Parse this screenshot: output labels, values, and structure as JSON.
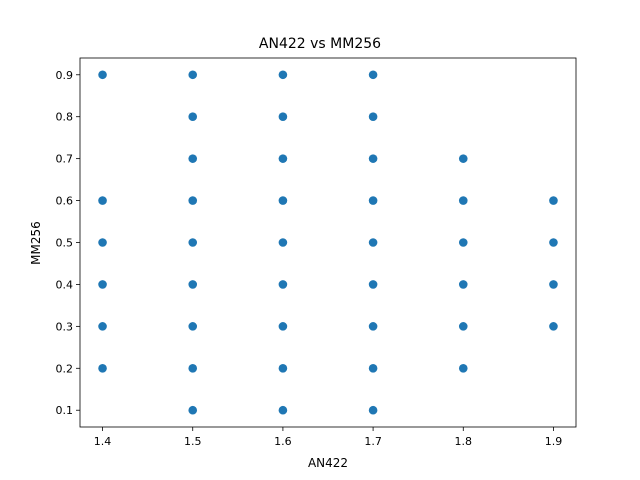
{
  "chart_data": {
    "type": "scatter",
    "title": "AN422 vs MM256",
    "xlabel": "AN422",
    "ylabel": "MM256",
    "xlim": [
      1.375,
      1.925
    ],
    "ylim": [
      0.06,
      0.94
    ],
    "xticks": [
      "1.4",
      "1.5",
      "1.6",
      "1.7",
      "1.8",
      "1.9"
    ],
    "yticks": [
      "0.1",
      "0.2",
      "0.3",
      "0.4",
      "0.5",
      "0.6",
      "0.7",
      "0.8",
      "0.9"
    ],
    "grid": false,
    "marker_color": "#1f77b4",
    "points": [
      [
        1.4,
        0.2
      ],
      [
        1.4,
        0.3
      ],
      [
        1.4,
        0.4
      ],
      [
        1.4,
        0.5
      ],
      [
        1.4,
        0.6
      ],
      [
        1.4,
        0.9
      ],
      [
        1.5,
        0.1
      ],
      [
        1.5,
        0.2
      ],
      [
        1.5,
        0.3
      ],
      [
        1.5,
        0.4
      ],
      [
        1.5,
        0.5
      ],
      [
        1.5,
        0.6
      ],
      [
        1.5,
        0.7
      ],
      [
        1.5,
        0.8
      ],
      [
        1.5,
        0.9
      ],
      [
        1.6,
        0.1
      ],
      [
        1.6,
        0.2
      ],
      [
        1.6,
        0.3
      ],
      [
        1.6,
        0.4
      ],
      [
        1.6,
        0.5
      ],
      [
        1.6,
        0.6
      ],
      [
        1.6,
        0.7
      ],
      [
        1.6,
        0.8
      ],
      [
        1.6,
        0.9
      ],
      [
        1.7,
        0.1
      ],
      [
        1.7,
        0.2
      ],
      [
        1.7,
        0.3
      ],
      [
        1.7,
        0.4
      ],
      [
        1.7,
        0.5
      ],
      [
        1.7,
        0.6
      ],
      [
        1.7,
        0.7
      ],
      [
        1.7,
        0.8
      ],
      [
        1.7,
        0.9
      ],
      [
        1.8,
        0.2
      ],
      [
        1.8,
        0.3
      ],
      [
        1.8,
        0.4
      ],
      [
        1.8,
        0.5
      ],
      [
        1.8,
        0.6
      ],
      [
        1.8,
        0.7
      ],
      [
        1.9,
        0.3
      ],
      [
        1.9,
        0.4
      ],
      [
        1.9,
        0.5
      ],
      [
        1.9,
        0.6
      ]
    ]
  }
}
